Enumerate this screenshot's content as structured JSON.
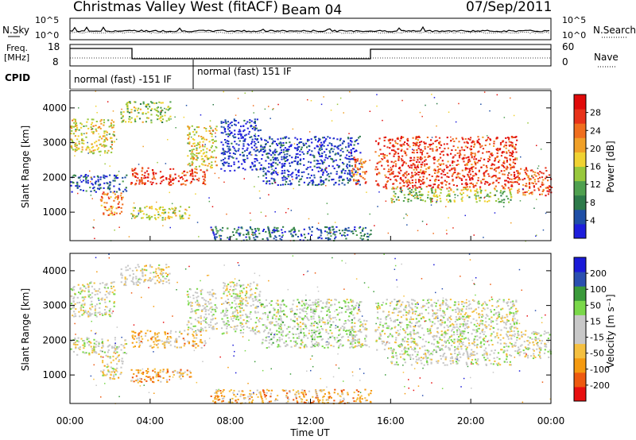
{
  "header": {
    "site_title": "Christmas Valley West (fitACF)",
    "beam": "Beam 04",
    "date": "07/Sep/2011"
  },
  "noise_panel": {
    "left_label": "N.Sky",
    "right_label": "N.Search",
    "left_ticks": [
      "10^5",
      "10^0"
    ],
    "right_ticks": [
      "10^5",
      "10^0"
    ]
  },
  "freq_panel": {
    "left_label_1": "Freq.",
    "left_label_2": "[MHz]",
    "right_label": "Nave",
    "left_ticks": [
      "18",
      "8"
    ],
    "right_ticks": [
      "60",
      "0"
    ]
  },
  "cpid_panel": {
    "label": "CPID",
    "segments": [
      {
        "start_hr": 0,
        "end_hr": 6,
        "text": "normal (fast) -151 IF"
      },
      {
        "start_hr": 6,
        "end_hr": 24,
        "text": "normal (fast) 151 IF"
      }
    ]
  },
  "colors": {
    "power_scale": [
      "#1e1edc",
      "#1f4fa6",
      "#2d7a4a",
      "#4fa04f",
      "#98c83c",
      "#f0d232",
      "#f0a028",
      "#f06e1e",
      "#e83219",
      "#e00a0a"
    ],
    "velocity_scale": [
      "#e81010",
      "#ee5a10",
      "#f59a10",
      "#f5c040",
      "#c8c8c8",
      "#c8c8c8",
      "#7ad84a",
      "#3a9a3a",
      "#2a4fb0",
      "#1a1ad8"
    ]
  },
  "chart_data": [
    {
      "type": "heatmap",
      "name_key": "power",
      "xlabel": "",
      "ylabel": "Slant Range [km]",
      "xlim": [
        0,
        24
      ],
      "ylim": [
        180,
        4500
      ],
      "yticks": [
        "1000",
        "2000",
        "3000",
        "4000"
      ],
      "colorbar": {
        "label": "Power [dB]",
        "range": [
          0,
          32
        ],
        "ticks": [
          "4",
          "8",
          "12",
          "16",
          "20",
          "24",
          "28"
        ]
      },
      "bands_hr_km": [
        {
          "t0": 0.0,
          "t1": 2.2,
          "r0": 2700,
          "r1": 3700,
          "level": 0.55
        },
        {
          "t0": 0.0,
          "t1": 2.8,
          "r0": 1600,
          "r1": 2100,
          "level": 0.15
        },
        {
          "t0": 1.5,
          "t1": 2.6,
          "r0": 900,
          "r1": 1600,
          "level": 0.7
        },
        {
          "t0": 2.5,
          "t1": 5.0,
          "r0": 3600,
          "r1": 4200,
          "level": 0.45
        },
        {
          "t0": 3.0,
          "t1": 6.8,
          "r0": 1800,
          "r1": 2300,
          "level": 0.85
        },
        {
          "t0": 3.0,
          "t1": 6.0,
          "r0": 800,
          "r1": 1200,
          "level": 0.5
        },
        {
          "t0": 5.8,
          "t1": 7.3,
          "r0": 2300,
          "r1": 3500,
          "level": 0.55
        },
        {
          "t0": 7.5,
          "t1": 9.5,
          "r0": 2200,
          "r1": 3700,
          "level": 0.05
        },
        {
          "t0": 9.5,
          "t1": 14.5,
          "r0": 1800,
          "r1": 3200,
          "level": 0.1
        },
        {
          "t0": 14.0,
          "t1": 14.8,
          "r0": 1800,
          "r1": 2600,
          "level": 0.75
        },
        {
          "t0": 15.2,
          "t1": 22.3,
          "r0": 1700,
          "r1": 3200,
          "level": 0.85
        },
        {
          "t0": 16.0,
          "t1": 22.0,
          "r0": 1300,
          "r1": 1700,
          "level": 0.45
        },
        {
          "t0": 22.3,
          "t1": 24.0,
          "r0": 1500,
          "r1": 2300,
          "level": 0.8
        },
        {
          "t0": 7.0,
          "t1": 15.0,
          "r0": 200,
          "r1": 600,
          "level": 0.2
        }
      ]
    },
    {
      "type": "heatmap",
      "name_key": "velocity",
      "xlabel": "Time UT",
      "ylabel": "Slant Range [km]",
      "xlim": [
        0,
        24
      ],
      "ylim": [
        180,
        4500
      ],
      "xticks": [
        "00:00",
        "04:00",
        "08:00",
        "12:00",
        "16:00",
        "20:00",
        "00:00"
      ],
      "yticks": [
        "1000",
        "2000",
        "3000",
        "4000"
      ],
      "colorbar": {
        "label": "Velocity [m s⁻¹]",
        "range": [
          -250,
          250
        ],
        "ticks": [
          "200",
          "100",
          "50",
          "15",
          "-15",
          "-50",
          "-100",
          "-200"
        ]
      },
      "bands_hr_km": [
        {
          "t0": 0.0,
          "t1": 2.2,
          "r0": 2700,
          "r1": 3700,
          "level": 0.5
        },
        {
          "t0": 0.0,
          "t1": 2.8,
          "r0": 1600,
          "r1": 2100,
          "level": 0.5
        },
        {
          "t0": 1.5,
          "t1": 2.6,
          "r0": 900,
          "r1": 1600,
          "level": 0.45
        },
        {
          "t0": 2.5,
          "t1": 5.0,
          "r0": 3600,
          "r1": 4200,
          "level": 0.45
        },
        {
          "t0": 3.0,
          "t1": 6.8,
          "r0": 1800,
          "r1": 2300,
          "level": 0.35
        },
        {
          "t0": 3.0,
          "t1": 6.0,
          "r0": 800,
          "r1": 1200,
          "level": 0.3
        },
        {
          "t0": 5.8,
          "t1": 7.3,
          "r0": 2300,
          "r1": 3500,
          "level": 0.5
        },
        {
          "t0": 7.5,
          "t1": 9.5,
          "r0": 2200,
          "r1": 3700,
          "level": 0.5
        },
        {
          "t0": 9.5,
          "t1": 14.5,
          "r0": 1800,
          "r1": 3200,
          "level": 0.55
        },
        {
          "t0": 14.0,
          "t1": 14.8,
          "r0": 1800,
          "r1": 2600,
          "level": 0.5
        },
        {
          "t0": 15.2,
          "t1": 22.3,
          "r0": 1700,
          "r1": 3200,
          "level": 0.5
        },
        {
          "t0": 16.0,
          "t1": 22.0,
          "r0": 1300,
          "r1": 1700,
          "level": 0.5
        },
        {
          "t0": 22.3,
          "t1": 24.0,
          "r0": 1500,
          "r1": 2300,
          "level": 0.5
        },
        {
          "t0": 7.0,
          "t1": 15.0,
          "r0": 200,
          "r1": 600,
          "level": 0.3
        }
      ]
    }
  ]
}
